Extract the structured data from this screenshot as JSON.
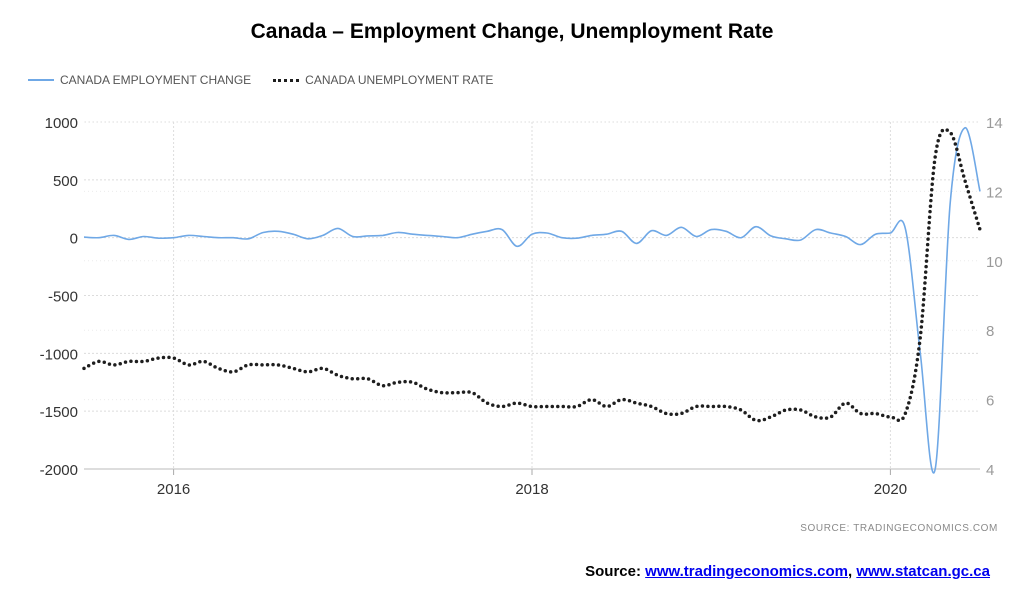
{
  "chart_data": {
    "type": "line",
    "title": "Canada – Employment Change, Unemployment Rate",
    "legend_placement": "top-left",
    "grid": true,
    "x_ticks": [
      "2016",
      "2018",
      "2020"
    ],
    "x_range": [
      "2015-07",
      "2020-07"
    ],
    "y_left": {
      "range": [
        -2000,
        1000
      ],
      "ticks": [
        "1000",
        "500",
        "0",
        "-500",
        "-1000",
        "-1500",
        "-2000"
      ]
    },
    "y_right": {
      "range": [
        4,
        14
      ],
      "ticks": [
        "14",
        "12",
        "10",
        "8",
        "6",
        "4"
      ]
    },
    "series": [
      {
        "name": "CANADA EMPLOYMENT CHANGE",
        "axis": "left",
        "color": "#6fa8e6",
        "style": "solid",
        "x": [
          "2015-07",
          "2015-08",
          "2015-09",
          "2015-10",
          "2015-11",
          "2015-12",
          "2016-01",
          "2016-02",
          "2016-03",
          "2016-04",
          "2016-05",
          "2016-06",
          "2016-07",
          "2016-08",
          "2016-09",
          "2016-10",
          "2016-11",
          "2016-12",
          "2017-01",
          "2017-02",
          "2017-03",
          "2017-04",
          "2017-05",
          "2017-06",
          "2017-07",
          "2017-08",
          "2017-09",
          "2017-10",
          "2017-11",
          "2017-12",
          "2018-01",
          "2018-02",
          "2018-03",
          "2018-04",
          "2018-05",
          "2018-06",
          "2018-07",
          "2018-08",
          "2018-09",
          "2018-10",
          "2018-11",
          "2018-12",
          "2019-01",
          "2019-02",
          "2019-03",
          "2019-04",
          "2019-05",
          "2019-06",
          "2019-07",
          "2019-08",
          "2019-09",
          "2019-10",
          "2019-11",
          "2019-12",
          "2020-01",
          "2020-02",
          "2020-03",
          "2020-04",
          "2020-05",
          "2020-06",
          "2020-07"
        ],
        "values": [
          5,
          0,
          20,
          -15,
          10,
          -5,
          0,
          20,
          10,
          0,
          0,
          -10,
          45,
          55,
          30,
          -10,
          20,
          80,
          10,
          15,
          20,
          45,
          30,
          20,
          10,
          0,
          30,
          55,
          70,
          -75,
          30,
          40,
          0,
          -5,
          20,
          30,
          55,
          -50,
          60,
          20,
          90,
          10,
          70,
          55,
          0,
          95,
          15,
          -10,
          -20,
          70,
          40,
          10,
          -60,
          30,
          40,
          80,
          -1000,
          -2000,
          290,
          950,
          400
        ]
      },
      {
        "name": "CANADA UNEMPLOYMENT RATE",
        "axis": "right",
        "color": "#1e1e1e",
        "style": "dotted",
        "x": [
          "2015-07",
          "2015-08",
          "2015-09",
          "2015-10",
          "2015-11",
          "2015-12",
          "2016-01",
          "2016-02",
          "2016-03",
          "2016-04",
          "2016-05",
          "2016-06",
          "2016-07",
          "2016-08",
          "2016-09",
          "2016-10",
          "2016-11",
          "2016-12",
          "2017-01",
          "2017-02",
          "2017-03",
          "2017-04",
          "2017-05",
          "2017-06",
          "2017-07",
          "2017-08",
          "2017-09",
          "2017-10",
          "2017-11",
          "2017-12",
          "2018-01",
          "2018-02",
          "2018-03",
          "2018-04",
          "2018-05",
          "2018-06",
          "2018-07",
          "2018-08",
          "2018-09",
          "2018-10",
          "2018-11",
          "2018-12",
          "2019-01",
          "2019-02",
          "2019-03",
          "2019-04",
          "2019-05",
          "2019-06",
          "2019-07",
          "2019-08",
          "2019-09",
          "2019-10",
          "2019-11",
          "2019-12",
          "2020-01",
          "2020-02",
          "2020-03",
          "2020-04",
          "2020-05",
          "2020-06",
          "2020-07"
        ],
        "values": [
          6.9,
          7.1,
          7.0,
          7.1,
          7.1,
          7.2,
          7.2,
          7.0,
          7.1,
          6.9,
          6.8,
          7.0,
          7.0,
          7.0,
          6.9,
          6.8,
          6.9,
          6.7,
          6.6,
          6.6,
          6.4,
          6.5,
          6.5,
          6.3,
          6.2,
          6.2,
          6.2,
          5.9,
          5.8,
          5.9,
          5.8,
          5.8,
          5.8,
          5.8,
          6.0,
          5.8,
          6.0,
          5.9,
          5.8,
          5.6,
          5.6,
          5.8,
          5.8,
          5.8,
          5.7,
          5.4,
          5.5,
          5.7,
          5.7,
          5.5,
          5.5,
          5.9,
          5.6,
          5.6,
          5.5,
          5.6,
          7.8,
          13.0,
          13.7,
          12.3,
          10.9
        ]
      }
    ]
  },
  "source_tag": "SOURCE:  TRADINGECONOMICS.COM",
  "footer": {
    "prefix": "Source: ",
    "link1": "www.tradingeconomics.com",
    "separator": ", ",
    "link2": "www.statcan.gc.ca"
  }
}
